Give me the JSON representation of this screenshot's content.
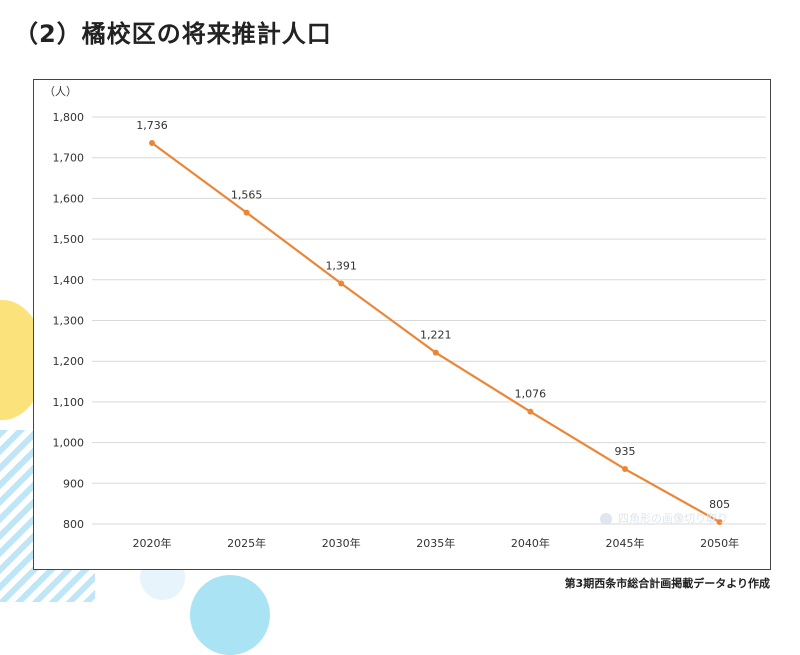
{
  "page": {
    "title": "（2）橘校区の将来推計人口",
    "source_note": "第3期西条市総合計画掲載データより作成",
    "watermark": "四角形の画像切り取り"
  },
  "chart_data": {
    "type": "line",
    "title": "",
    "xlabel": "",
    "ylabel": "（人）",
    "categories": [
      "2020年",
      "2025年",
      "2030年",
      "2035年",
      "2040年",
      "2045年",
      "2050年"
    ],
    "series": [
      {
        "values": [
          1736,
          1565,
          1391,
          1221,
          1076,
          935,
          805
        ],
        "color": "#ec8637"
      }
    ],
    "data_labels": [
      "1,736",
      "1,565",
      "1,391",
      "1,221",
      "1,076",
      "935",
      "805"
    ],
    "ylim": [
      800,
      1800
    ],
    "yticks": [
      800,
      900,
      1000,
      1100,
      1200,
      1300,
      1400,
      1500,
      1600,
      1700,
      1800
    ],
    "ytick_labels": [
      "800",
      "900",
      "1,000",
      "1,100",
      "1,200",
      "1,300",
      "1,400",
      "1,500",
      "1,600",
      "1,700",
      "1,800"
    ],
    "grid": true,
    "grid_color": "#d9d9d9",
    "legend": "none"
  }
}
